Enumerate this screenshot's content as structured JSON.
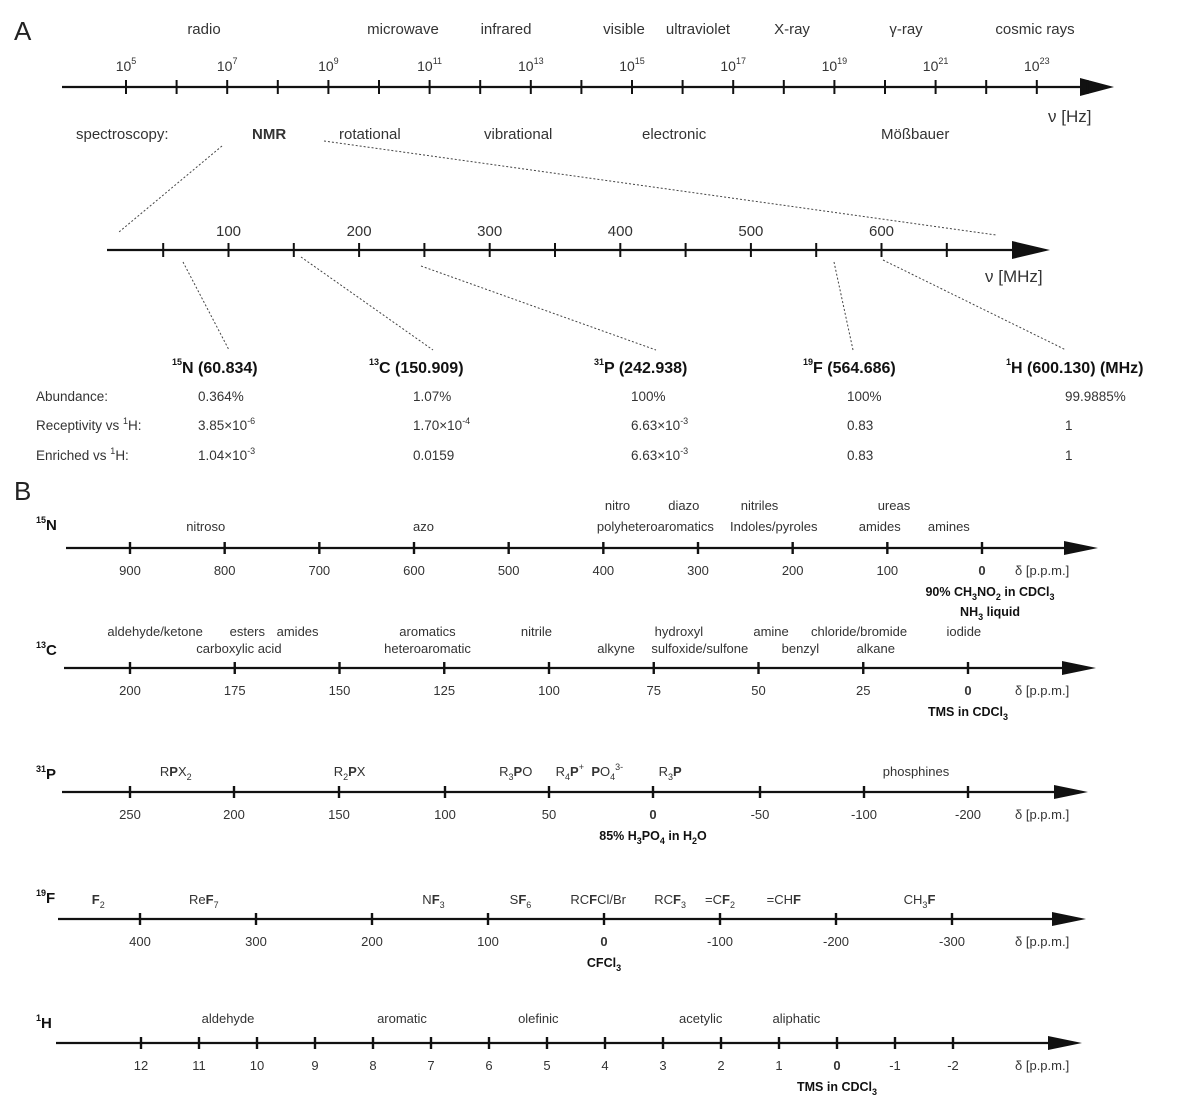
{
  "panel_a": {
    "label": "A",
    "regions": [
      "radio",
      "microwave",
      "infrared",
      "visible",
      "ultraviolet",
      "X-ray",
      "γ-ray",
      "cosmic rays"
    ],
    "exponents": [
      "5",
      "7",
      "9",
      "11",
      "13",
      "15",
      "17",
      "19",
      "21",
      "23"
    ],
    "tick_base": "10",
    "axis_unit": "ν [Hz]",
    "spectroscopy_label": "spectroscopy:",
    "spectroscopy_types": [
      "NMR",
      "rotational",
      "vibrational",
      "electronic",
      "Mößbauer"
    ],
    "mhz_ticks": [
      "100",
      "200",
      "300",
      "400",
      "500",
      "600"
    ],
    "mhz_unit": "ν [MHz]",
    "nuclei": [
      {
        "mass": "15",
        "symbol": "N",
        "freq": "(60.834)",
        "extra": ""
      },
      {
        "mass": "13",
        "symbol": "C",
        "freq": "(150.909)",
        "extra": ""
      },
      {
        "mass": "31",
        "symbol": "P",
        "freq": "(242.938)",
        "extra": ""
      },
      {
        "mass": "19",
        "symbol": "F",
        "freq": "(564.686)",
        "extra": ""
      },
      {
        "mass": "1",
        "symbol": "H",
        "freq": "(600.130)",
        "extra": "(MHz)"
      }
    ],
    "table": {
      "rows": [
        {
          "label": "Abundance:",
          "label_sup": "",
          "label_after": "",
          "values": [
            {
              "base": "0.364%",
              "sup": ""
            },
            {
              "base": "1.07%",
              "sup": ""
            },
            {
              "base": "100%",
              "sup": ""
            },
            {
              "base": "100%",
              "sup": ""
            },
            {
              "base": "99.9885%",
              "sup": ""
            }
          ]
        },
        {
          "label": "Receptivity vs ",
          "label_sup": "1",
          "label_after": "H:",
          "values": [
            {
              "base": "3.85×10",
              "sup": "-6"
            },
            {
              "base": "1.70×10",
              "sup": "-4"
            },
            {
              "base": "6.63×10",
              "sup": "-3"
            },
            {
              "base": "0.83",
              "sup": ""
            },
            {
              "base": "1",
              "sup": ""
            }
          ]
        },
        {
          "label": "Enriched vs ",
          "label_sup": "1",
          "label_after": "H:",
          "values": [
            {
              "base": "1.04×10",
              "sup": "-3"
            },
            {
              "base": "0.0159",
              "sup": ""
            },
            {
              "base": "6.63×10",
              "sup": "-3"
            },
            {
              "base": "0.83",
              "sup": ""
            },
            {
              "base": "1",
              "sup": ""
            }
          ]
        }
      ]
    }
  },
  "panel_b": {
    "label": "B",
    "axis_unit": "δ [p.p.m.]",
    "scales": [
      {
        "id": "n15",
        "mass": "15",
        "symbol": "N",
        "ticks": [
          900,
          800,
          700,
          600,
          500,
          400,
          300,
          200,
          100,
          0
        ],
        "groups": [
          {
            "text": "nitroso",
            "ppm": 820,
            "row": 2
          },
          {
            "text": "azo",
            "ppm": 590,
            "row": 2
          },
          {
            "text": "nitro",
            "ppm": 385,
            "row": 1
          },
          {
            "text": "diazo",
            "ppm": 315,
            "row": 1
          },
          {
            "text": "polyheteroaromatics",
            "ppm": 345,
            "row": 2
          },
          {
            "text": "nitriles",
            "ppm": 235,
            "row": 1
          },
          {
            "text": "Indoles/pyroles",
            "ppm": 220,
            "row": 2
          },
          {
            "text": "ureas",
            "ppm": 93,
            "row": 1
          },
          {
            "text": "amides",
            "ppm": 108,
            "row": 2
          },
          {
            "text": "amines",
            "ppm": 35,
            "row": 2
          }
        ],
        "reference": [
          "90% CH3NO2 in CDCl3",
          "NH3 liquid"
        ]
      },
      {
        "id": "c13",
        "mass": "13",
        "symbol": "C",
        "ticks": [
          200,
          175,
          150,
          125,
          100,
          75,
          50,
          25,
          0
        ],
        "groups": [
          {
            "text": "aldehyde/ketone",
            "ppm": 194,
            "row": 1
          },
          {
            "text": "esters",
            "ppm": 172,
            "row": 1
          },
          {
            "text": "amides",
            "ppm": 160,
            "row": 1
          },
          {
            "text": "carboxylic acid",
            "ppm": 174,
            "row": 2
          },
          {
            "text": "aromatics",
            "ppm": 129,
            "row": 1
          },
          {
            "text": "heteroaromatic",
            "ppm": 129,
            "row": 2
          },
          {
            "text": "nitrile",
            "ppm": 103,
            "row": 1
          },
          {
            "text": "hydroxyl",
            "ppm": 69,
            "row": 1
          },
          {
            "text": "alkyne",
            "ppm": 84,
            "row": 2
          },
          {
            "text": "sulfoxide/sulfone",
            "ppm": 64,
            "row": 2
          },
          {
            "text": "amine",
            "ppm": 47,
            "row": 1
          },
          {
            "text": "benzyl",
            "ppm": 40,
            "row": 2
          },
          {
            "text": "chloride/bromide",
            "ppm": 26,
            "row": 1
          },
          {
            "text": "alkane",
            "ppm": 22,
            "row": 2
          },
          {
            "text": "iodide",
            "ppm": 1,
            "row": 1
          }
        ],
        "reference": [
          "TMS in CDCl3"
        ]
      },
      {
        "id": "p31",
        "mass": "31",
        "symbol": "P",
        "ticks": [
          250,
          200,
          150,
          100,
          50,
          0,
          -50,
          -100,
          -200
        ],
        "groups": [
          {
            "text": "RPX2",
            "ppm": 228,
            "row": 1
          },
          {
            "text": "R2PX",
            "ppm": 145,
            "row": 1
          },
          {
            "text": "R3PO",
            "ppm": 66,
            "row": 1
          },
          {
            "text": "R4P+",
            "ppm": 40,
            "row": 1
          },
          {
            "text": "PO4 3-",
            "ppm": 22,
            "row": 1
          },
          {
            "text": "R3P",
            "ppm": -8,
            "row": 1
          },
          {
            "text": "phosphines",
            "ppm": -150,
            "row": 1
          }
        ],
        "reference": [
          "85% H3PO4 in H2O"
        ]
      },
      {
        "id": "f19",
        "mass": "19",
        "symbol": "F",
        "ticks": [
          400,
          300,
          200,
          100,
          0,
          -100,
          -200,
          -300
        ],
        "groups": [
          {
            "text": "F2",
            "ppm": 436,
            "row": 1
          },
          {
            "text": "ReF7",
            "ppm": 345,
            "row": 1
          },
          {
            "text": "NF3",
            "ppm": 147,
            "row": 1
          },
          {
            "text": "SF6",
            "ppm": 72,
            "row": 1
          },
          {
            "text": "RCFCl/Br",
            "ppm": 5,
            "row": 1
          },
          {
            "text": "RCF3",
            "ppm": -57,
            "row": 1
          },
          {
            "text": "=CF2",
            "ppm": -100,
            "row": 1
          },
          {
            "text": "=CHF",
            "ppm": -155,
            "row": 1
          },
          {
            "text": "CH3F",
            "ppm": -272,
            "row": 1
          }
        ],
        "reference": [
          "CFCl3"
        ]
      },
      {
        "id": "h1",
        "mass": "1",
        "symbol": "H",
        "ticks": [
          12,
          11,
          10,
          9,
          8,
          7,
          6,
          5,
          4,
          3,
          2,
          1,
          0,
          -1,
          -2
        ],
        "groups": [
          {
            "text": "aldehyde",
            "ppm": 10.5,
            "row": 1
          },
          {
            "text": "aromatic",
            "ppm": 7.5,
            "row": 1
          },
          {
            "text": "olefinic",
            "ppm": 5.15,
            "row": 1
          },
          {
            "text": "acetylic",
            "ppm": 2.35,
            "row": 1
          },
          {
            "text": "aliphatic",
            "ppm": 0.7,
            "row": 1
          }
        ],
        "reference": [
          "TMS in CDCl3"
        ]
      }
    ]
  },
  "colors": {
    "ink": "#111111",
    "text": "#333333"
  }
}
